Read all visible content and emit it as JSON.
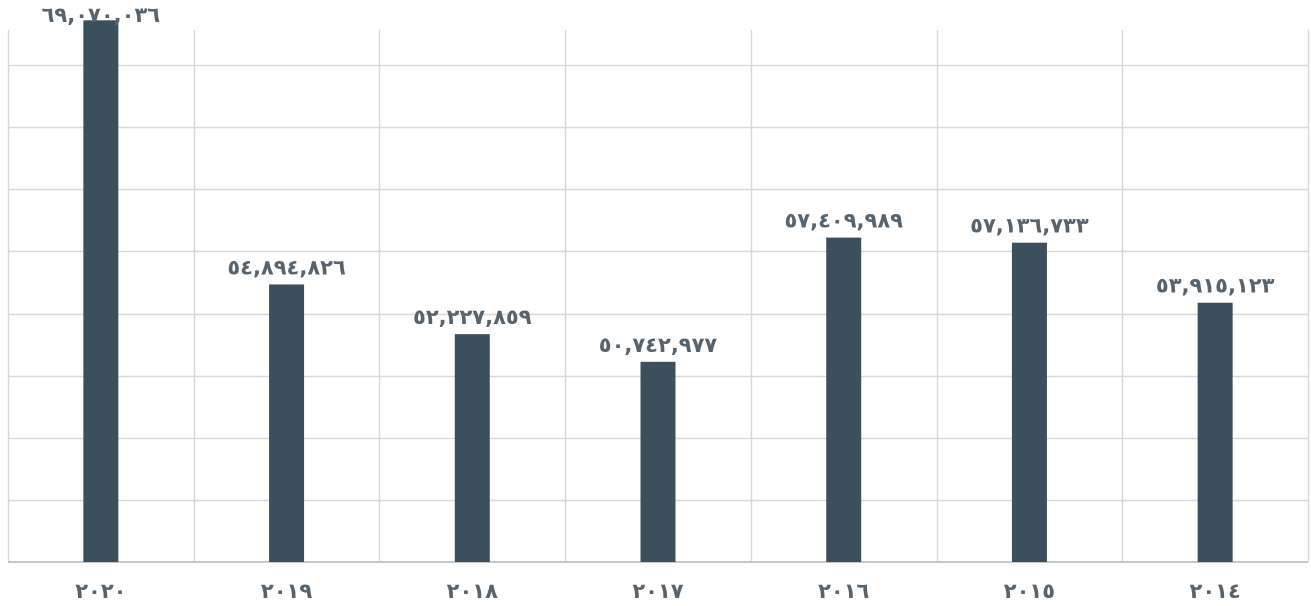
{
  "chart_data": {
    "type": "bar",
    "categories": [
      "٢٠٢٠",
      "٢٠١٩",
      "٢٠١٨",
      "٢٠١٧",
      "٢٠١٦",
      "٢٠١٥",
      "٢٠١٤"
    ],
    "values": [
      69070036,
      54894826,
      52227859,
      50742977,
      57409989,
      57136733,
      53915123
    ],
    "value_labels": [
      "٦٩,٠٧٠,٠٣٦",
      "٥٤,٨٩٤,٨٢٦",
      "٥٢,٢٢٧,٨٥٩",
      "٥٠,٧٤٢,٩٧٧",
      "٥٧,٤٠٩,٩٨٩",
      "٥٧,١٣٦,٧٣٣",
      "٥٣,٩١٥,١٢٣"
    ],
    "title": "",
    "xlabel": "",
    "ylabel": "",
    "ylim": [
      40000000,
      70000000
    ],
    "grid": true,
    "legend": "none",
    "colors": {
      "bar": "#3c4f5c",
      "label": "#58646d",
      "grid": "#d9d9d9"
    }
  }
}
